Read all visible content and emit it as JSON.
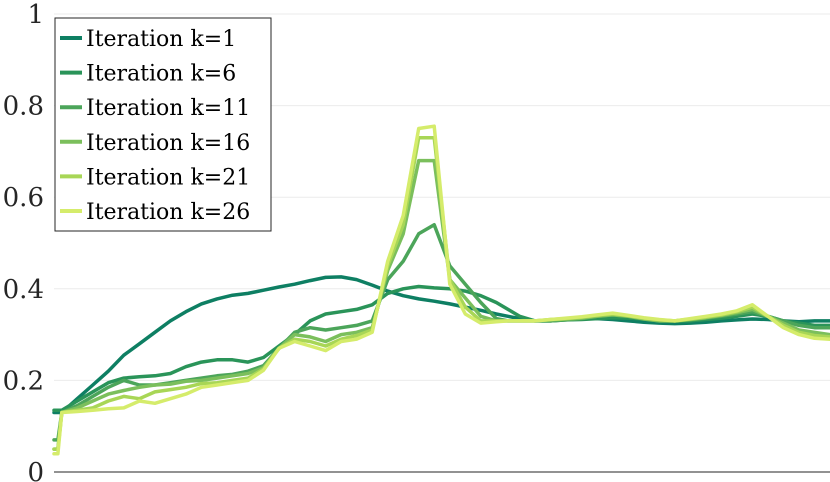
{
  "chart_data": {
    "type": "line",
    "title": "",
    "xlabel": "",
    "ylabel": "",
    "xlim": [
      0,
      100
    ],
    "ylim": [
      0,
      1
    ],
    "yticks": [
      0,
      0.2,
      0.4,
      0.6,
      0.8,
      1
    ],
    "ytick_labels": [
      "0",
      "0.2",
      "0.4",
      "0.6",
      "0.8",
      "1"
    ],
    "grid": true,
    "legend_position": "top-left",
    "series": [
      {
        "name": "Iteration k=1",
        "color": "#0e7f63",
        "x": [
          0,
          0.5,
          1,
          3,
          5,
          7,
          9,
          11,
          13,
          15,
          17,
          19,
          21,
          23,
          25,
          27,
          29,
          31,
          33,
          35,
          37,
          39,
          41,
          43,
          45,
          47,
          49,
          51,
          53,
          55,
          57,
          58.5,
          60,
          62,
          64,
          66,
          68,
          70,
          72,
          74,
          76,
          78,
          80,
          82,
          84,
          86,
          88,
          90,
          92,
          94,
          96,
          98,
          100
        ],
        "y": [
          0.13,
          0.13,
          0.13,
          0.16,
          0.19,
          0.22,
          0.255,
          0.28,
          0.305,
          0.33,
          0.35,
          0.367,
          0.378,
          0.386,
          0.39,
          0.397,
          0.404,
          0.41,
          0.418,
          0.425,
          0.426,
          0.42,
          0.408,
          0.395,
          0.385,
          0.378,
          0.373,
          0.367,
          0.36,
          0.353,
          0.345,
          0.34,
          0.335,
          0.33,
          0.33,
          0.333,
          0.335,
          0.335,
          0.333,
          0.33,
          0.327,
          0.325,
          0.324,
          0.325,
          0.327,
          0.33,
          0.332,
          0.334,
          0.333,
          0.33,
          0.328,
          0.33,
          0.33
        ]
      },
      {
        "name": "Iteration k=6",
        "color": "#2a9459",
        "x": [
          0,
          0.5,
          1,
          3,
          5,
          7,
          9,
          11,
          13,
          15,
          17,
          19,
          21,
          23,
          25,
          27,
          29,
          31,
          33,
          35,
          37,
          39,
          41,
          43,
          45,
          47,
          49,
          51,
          53,
          55,
          57,
          58.5,
          60,
          62,
          64,
          66,
          68,
          70,
          72,
          74,
          76,
          78,
          80,
          82,
          84,
          86,
          88,
          90,
          92,
          94,
          96,
          98,
          100
        ],
        "y": [
          0.135,
          0.135,
          0.135,
          0.155,
          0.175,
          0.195,
          0.205,
          0.208,
          0.21,
          0.215,
          0.23,
          0.24,
          0.245,
          0.245,
          0.24,
          0.25,
          0.275,
          0.3,
          0.33,
          0.345,
          0.35,
          0.355,
          0.365,
          0.39,
          0.4,
          0.405,
          0.402,
          0.4,
          0.395,
          0.385,
          0.37,
          0.355,
          0.34,
          0.33,
          0.33,
          0.332,
          0.333,
          0.335,
          0.337,
          0.336,
          0.334,
          0.33,
          0.329,
          0.33,
          0.333,
          0.336,
          0.34,
          0.345,
          0.34,
          0.33,
          0.325,
          0.32,
          0.32
        ]
      },
      {
        "name": "Iteration k=11",
        "color": "#4ca55a",
        "x": [
          0,
          0.5,
          1,
          3,
          5,
          7,
          9,
          11,
          13,
          15,
          17,
          19,
          21,
          23,
          25,
          27,
          29,
          31,
          33,
          35,
          37,
          39,
          41,
          43,
          45,
          47,
          49,
          51,
          53,
          55,
          57,
          58.5,
          60,
          62,
          64,
          66,
          68,
          70,
          72,
          74,
          76,
          78,
          80,
          82,
          84,
          86,
          88,
          90,
          92,
          94,
          96,
          98,
          100
        ],
        "y": [
          0.07,
          0.07,
          0.13,
          0.145,
          0.165,
          0.185,
          0.2,
          0.19,
          0.19,
          0.195,
          0.2,
          0.205,
          0.21,
          0.213,
          0.22,
          0.232,
          0.27,
          0.305,
          0.315,
          0.31,
          0.315,
          0.32,
          0.33,
          0.42,
          0.46,
          0.52,
          0.54,
          0.45,
          0.41,
          0.37,
          0.335,
          0.33,
          0.33,
          0.33,
          0.33,
          0.332,
          0.335,
          0.34,
          0.343,
          0.34,
          0.335,
          0.33,
          0.33,
          0.332,
          0.336,
          0.34,
          0.345,
          0.35,
          0.34,
          0.33,
          0.32,
          0.315,
          0.315
        ]
      },
      {
        "name": "Iteration k=16",
        "color": "#7bbf5c",
        "x": [
          0,
          0.5,
          1,
          3,
          5,
          7,
          9,
          11,
          13,
          15,
          17,
          19,
          21,
          23,
          25,
          27,
          29,
          31,
          33,
          35,
          37,
          39,
          41,
          43,
          45,
          47,
          49,
          51,
          53,
          55,
          57,
          58.5,
          60,
          62,
          64,
          66,
          68,
          70,
          72,
          74,
          76,
          78,
          80,
          82,
          84,
          86,
          88,
          90,
          92,
          94,
          96,
          98,
          100
        ],
        "y": [
          0.05,
          0.05,
          0.13,
          0.14,
          0.155,
          0.17,
          0.178,
          0.185,
          0.19,
          0.192,
          0.198,
          0.2,
          0.205,
          0.21,
          0.215,
          0.228,
          0.27,
          0.3,
          0.295,
          0.285,
          0.3,
          0.305,
          0.315,
          0.44,
          0.52,
          0.68,
          0.68,
          0.42,
          0.38,
          0.34,
          0.33,
          0.33,
          0.33,
          0.33,
          0.332,
          0.334,
          0.336,
          0.34,
          0.343,
          0.34,
          0.334,
          0.33,
          0.33,
          0.333,
          0.337,
          0.342,
          0.348,
          0.355,
          0.34,
          0.325,
          0.31,
          0.305,
          0.3
        ]
      },
      {
        "name": "Iteration k=21",
        "color": "#a8d656",
        "x": [
          0,
          0.5,
          1,
          3,
          5,
          7,
          9,
          11,
          13,
          15,
          17,
          19,
          21,
          23,
          25,
          27,
          29,
          31,
          33,
          35,
          37,
          39,
          41,
          43,
          45,
          47,
          49,
          51,
          53,
          55,
          57,
          58.5,
          60,
          62,
          64,
          66,
          68,
          70,
          72,
          74,
          76,
          78,
          80,
          82,
          84,
          86,
          88,
          90,
          92,
          94,
          96,
          98,
          100
        ],
        "y": [
          0.05,
          0.05,
          0.13,
          0.135,
          0.14,
          0.155,
          0.165,
          0.16,
          0.175,
          0.18,
          0.185,
          0.193,
          0.195,
          0.2,
          0.205,
          0.225,
          0.27,
          0.29,
          0.285,
          0.275,
          0.29,
          0.298,
          0.31,
          0.45,
          0.54,
          0.73,
          0.73,
          0.42,
          0.36,
          0.33,
          0.33,
          0.33,
          0.33,
          0.33,
          0.333,
          0.335,
          0.338,
          0.342,
          0.345,
          0.341,
          0.336,
          0.332,
          0.33,
          0.334,
          0.338,
          0.343,
          0.35,
          0.36,
          0.34,
          0.32,
          0.305,
          0.298,
          0.295
        ]
      },
      {
        "name": "Iteration k=26",
        "color": "#d5ec6b",
        "x": [
          0,
          0.5,
          1,
          3,
          5,
          7,
          9,
          11,
          13,
          15,
          17,
          19,
          21,
          23,
          25,
          27,
          29,
          31,
          33,
          35,
          37,
          39,
          41,
          43,
          45,
          47,
          49,
          51,
          53,
          55,
          57,
          58.5,
          60,
          62,
          64,
          66,
          68,
          70,
          72,
          74,
          76,
          78,
          80,
          82,
          84,
          86,
          88,
          90,
          92,
          94,
          96,
          98,
          100
        ],
        "y": [
          0.04,
          0.04,
          0.13,
          0.132,
          0.135,
          0.138,
          0.14,
          0.155,
          0.15,
          0.16,
          0.17,
          0.185,
          0.19,
          0.195,
          0.2,
          0.222,
          0.27,
          0.285,
          0.275,
          0.265,
          0.285,
          0.29,
          0.305,
          0.46,
          0.56,
          0.75,
          0.755,
          0.41,
          0.345,
          0.325,
          0.328,
          0.33,
          0.33,
          0.33,
          0.333,
          0.336,
          0.339,
          0.343,
          0.347,
          0.342,
          0.337,
          0.333,
          0.33,
          0.335,
          0.34,
          0.345,
          0.352,
          0.365,
          0.34,
          0.315,
          0.3,
          0.292,
          0.29
        ]
      }
    ]
  }
}
